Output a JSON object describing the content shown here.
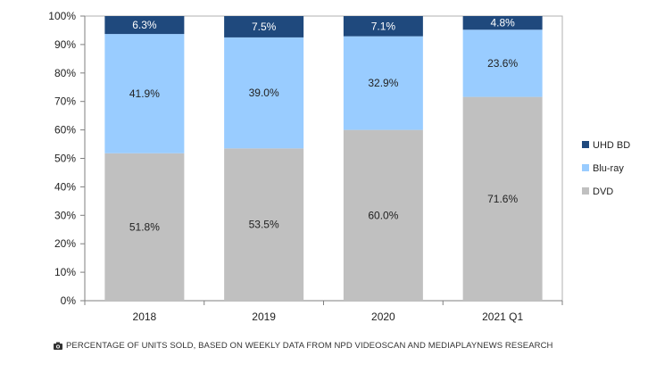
{
  "caption": {
    "icon": "camera-icon",
    "text": "PERCENTAGE OF UNITS SOLD, BASED ON WEEKLY DATA FROM NPD VIDEOSCAN AND MEDIAPLAYNEWS RESEARCH"
  },
  "chart_data": {
    "type": "bar",
    "stacked": true,
    "categories": [
      "2018",
      "2019",
      "2020",
      "2021 Q1"
    ],
    "series": [
      {
        "name": "DVD",
        "color": "#c0c0c0",
        "values": [
          51.8,
          53.5,
          60.0,
          71.6
        ],
        "labels": [
          "51.8%",
          "53.5%",
          "60.0%",
          "71.6%"
        ]
      },
      {
        "name": "Blu-ray",
        "color": "#99ccff",
        "values": [
          41.9,
          39.0,
          32.9,
          23.6
        ],
        "labels": [
          "41.9%",
          "39.0%",
          "32.9%",
          "23.6%"
        ]
      },
      {
        "name": "UHD BD",
        "color": "#1f497d",
        "values": [
          6.3,
          7.5,
          7.1,
          4.8
        ],
        "labels": [
          "6.3%",
          "7.5%",
          "7.1%",
          "4.8%"
        ]
      }
    ],
    "legend_order": [
      "UHD BD",
      "Blu-ray",
      "DVD"
    ],
    "y_ticks": [
      "0%",
      "10%",
      "20%",
      "30%",
      "40%",
      "50%",
      "60%",
      "70%",
      "80%",
      "90%",
      "100%"
    ],
    "ylim": [
      0,
      100
    ],
    "grid": false,
    "legend_position": "right",
    "title": "",
    "xlabel": "",
    "ylabel": ""
  }
}
